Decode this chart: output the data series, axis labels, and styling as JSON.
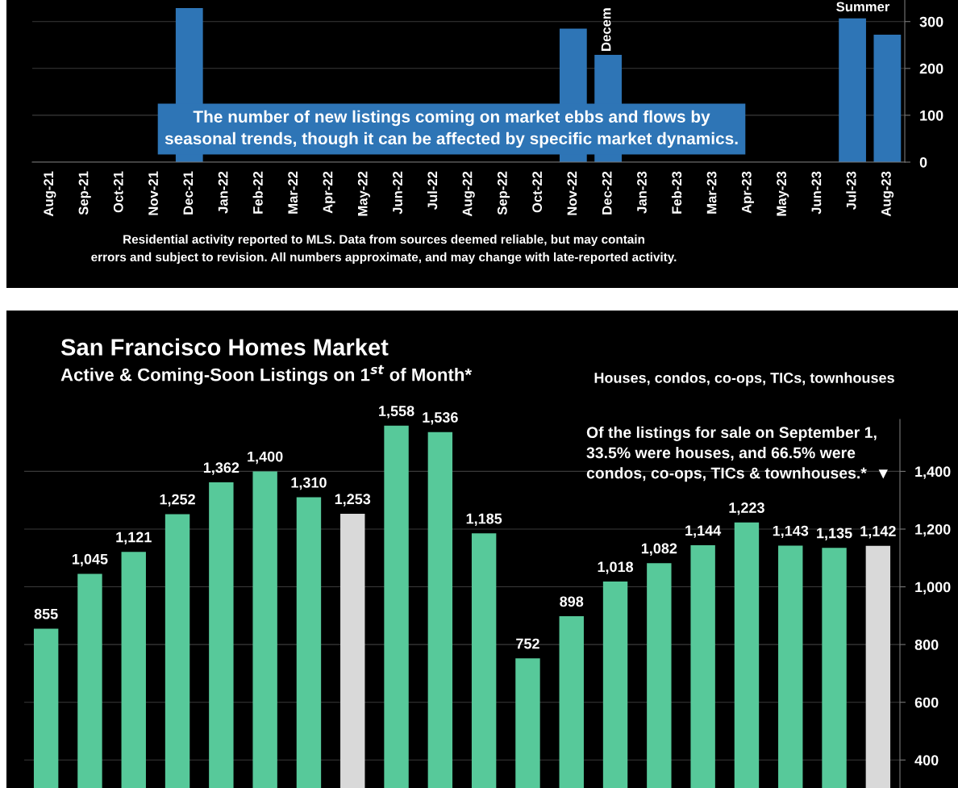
{
  "chart_data": [
    {
      "type": "bar",
      "categories": [
        "Aug-21",
        "Sep-21",
        "Oct-21",
        "Nov-21",
        "Dec-21",
        "Jan-22",
        "Feb-22",
        "Mar-22",
        "Apr-22",
        "May-22",
        "Jun-22",
        "Jul-22",
        "Aug-22",
        "Sep-22",
        "Oct-22",
        "Nov-22",
        "Dec-22",
        "Jan-23",
        "Feb-23",
        "Mar-23",
        "Apr-23",
        "May-23",
        "Jun-23",
        "Jul-23",
        "Aug-23"
      ],
      "values": [
        null,
        null,
        null,
        null,
        329,
        null,
        null,
        null,
        null,
        null,
        null,
        null,
        null,
        null,
        null,
        285,
        229,
        null,
        null,
        null,
        null,
        null,
        null,
        307,
        272
      ],
      "color": "#2e75b6",
      "ylim": [
        0,
        346
      ],
      "yticks": [
        0,
        100,
        200,
        300
      ],
      "grid": "y",
      "annotations": [
        "The number of new listings coming on market ebbs and flows by\nseasonal trends, though it can be affected by specific market dynamics.",
        "Decem",
        "Summer",
        "Residential activity reported to MLS. Data from sources deemed reliable, but may contain\nerrors and subject to revision. All numbers approximate, and may change with late-reported activity."
      ]
    },
    {
      "type": "bar",
      "title": "San Francisco Homes Market",
      "subtitle": "Active & Coming-Soon Listings on 1$^{st}$ of Month*",
      "categories": [
        null,
        null,
        null,
        null,
        null,
        null,
        null,
        null,
        null,
        null,
        null,
        null,
        null,
        null,
        null,
        null,
        null,
        null,
        null,
        null
      ],
      "values": [
        855,
        1045,
        1121,
        1252,
        1362,
        1400,
        1310,
        1253,
        1558,
        1536,
        1185,
        752,
        898,
        1018,
        1082,
        1144,
        1223,
        1143,
        1135,
        1142
      ],
      "colors": [
        "#57c99a",
        "#57c99a",
        "#57c99a",
        "#57c99a",
        "#57c99a",
        "#57c99a",
        "#57c99a",
        "#d9d9d9",
        "#57c99a",
        "#57c99a",
        "#57c99a",
        "#57c99a",
        "#57c99a",
        "#57c99a",
        "#57c99a",
        "#57c99a",
        "#57c99a",
        "#57c99a",
        "#57c99a",
        "#d9d9d9"
      ],
      "value_labels": [
        "855",
        "1,045",
        "1,121",
        "1,252",
        "1,362",
        "1,400",
        "1,310",
        "1,253",
        "1,558",
        "1,536",
        "1,185",
        "752",
        "898",
        "1,018",
        "1,082",
        "1,144",
        "1,223",
        "1,143",
        "1,135",
        "1,142"
      ],
      "ylim": [
        303,
        1580
      ],
      "yticks": [
        {
          "value": 400,
          "label": "400"
        },
        {
          "value": 600,
          "label": "600"
        },
        {
          "value": 800,
          "label": "800"
        },
        {
          "value": 1000,
          "label": "1,000"
        },
        {
          "value": 1200,
          "label": "1,200"
        },
        {
          "value": 1400,
          "label": "1,400"
        }
      ],
      "grid": "y",
      "annotations": [
        "Houses, condos, co-ops, TICs, townhouses",
        "Of the listings for sale on September 1,\n33.5% were houses, and 66.5% were\ncondos, co-ops, TICs & townhouses.*  ▼"
      ]
    }
  ]
}
